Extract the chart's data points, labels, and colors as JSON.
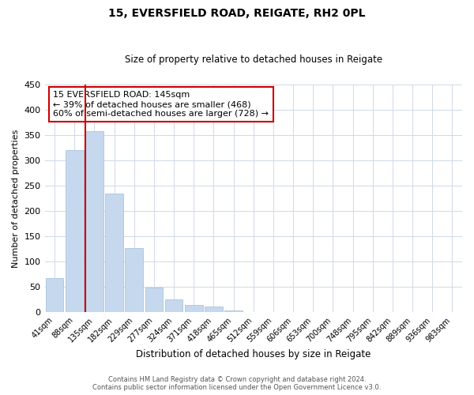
{
  "title": "15, EVERSFIELD ROAD, REIGATE, RH2 0PL",
  "subtitle": "Size of property relative to detached houses in Reigate",
  "xlabel": "Distribution of detached houses by size in Reigate",
  "ylabel": "Number of detached properties",
  "bar_labels": [
    "41sqm",
    "88sqm",
    "135sqm",
    "182sqm",
    "229sqm",
    "277sqm",
    "324sqm",
    "371sqm",
    "418sqm",
    "465sqm",
    "512sqm",
    "559sqm",
    "606sqm",
    "653sqm",
    "700sqm",
    "748sqm",
    "795sqm",
    "842sqm",
    "889sqm",
    "936sqm",
    "983sqm"
  ],
  "bar_values": [
    67,
    320,
    358,
    235,
    127,
    48,
    25,
    15,
    11,
    4,
    1,
    0,
    1,
    0,
    0,
    1,
    0,
    0,
    1,
    0,
    1
  ],
  "bar_color": "#c5d8ed",
  "bar_edgecolor": "#a0bcd8",
  "ylim": [
    0,
    450
  ],
  "yticks": [
    0,
    50,
    100,
    150,
    200,
    250,
    300,
    350,
    400,
    450
  ],
  "vline_color": "#cc0000",
  "annotation_text": "15 EVERSFIELD ROAD: 145sqm\n← 39% of detached houses are smaller (468)\n60% of semi-detached houses are larger (728) →",
  "annotation_box_edgecolor": "#cc0000",
  "footer_line1": "Contains HM Land Registry data © Crown copyright and database right 2024.",
  "footer_line2": "Contains public sector information licensed under the Open Government Licence v3.0.",
  "background_color": "#ffffff",
  "grid_color": "#d0d8e8"
}
